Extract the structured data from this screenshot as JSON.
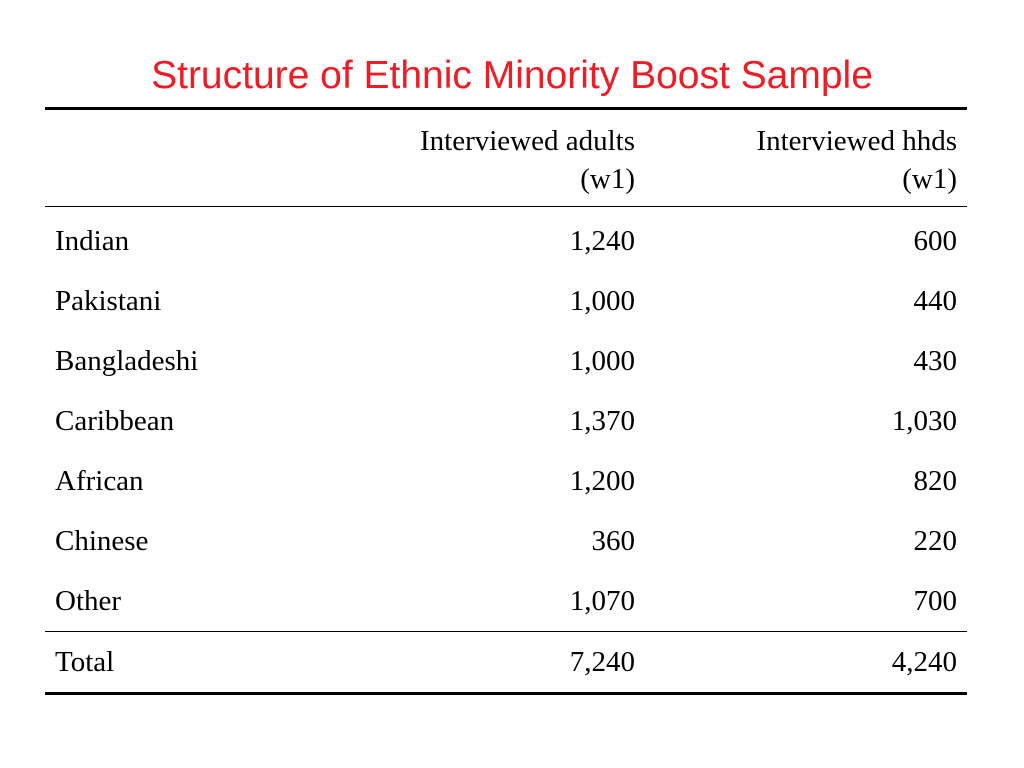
{
  "title": "Structure of Ethnic Minority Boost Sample",
  "table": {
    "headers": {
      "category": "",
      "adults_line1": "Interviewed adults",
      "adults_line2": "(w1)",
      "hhds_line1": "Interviewed hhds",
      "hhds_line2": "(w1)"
    },
    "rows": [
      {
        "group": "Indian",
        "adults": "1,240",
        "hhds": "600"
      },
      {
        "group": "Pakistani",
        "adults": "1,000",
        "hhds": "440"
      },
      {
        "group": "Bangladeshi",
        "adults": "1,000",
        "hhds": "430"
      },
      {
        "group": "Caribbean",
        "adults": "1,370",
        "hhds": "1,030"
      },
      {
        "group": "African",
        "adults": "1,200",
        "hhds": "820"
      },
      {
        "group": "Chinese",
        "adults": "360",
        "hhds": "220"
      },
      {
        "group": "Other",
        "adults": "1,070",
        "hhds": "700"
      }
    ],
    "total": {
      "group": "Total",
      "adults": "7,240",
      "hhds": "4,240"
    }
  },
  "colors": {
    "title": "#ee1c25",
    "text": "#000000",
    "rules": "#000000"
  }
}
